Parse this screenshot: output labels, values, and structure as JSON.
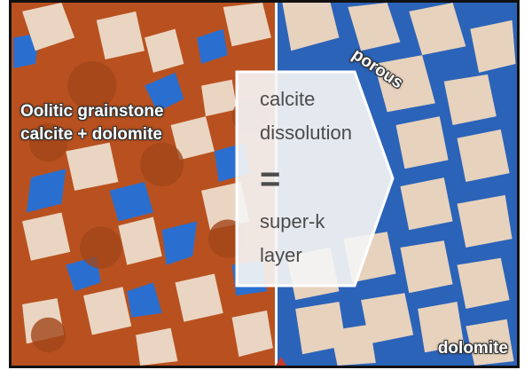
{
  "left_panel": {
    "label_line1": "Oolitic grainstone",
    "label_line2": "calcite + dolomite",
    "base_color": "#b8511f",
    "pore_color": "#2a6fd0",
    "crystal_color": "#ead5c2"
  },
  "right_panel": {
    "label_top": "porous",
    "label_bottom": "dolomite",
    "pore_color": "#2a63b8",
    "crystal_color": "#e7d2bd"
  },
  "center_box": {
    "line1": "calcite",
    "line2": "dissolution",
    "equals": "=",
    "line3": "super-k",
    "line4": "layer",
    "text_color": "#4b4b4b",
    "fill": "#f4f4f4"
  }
}
